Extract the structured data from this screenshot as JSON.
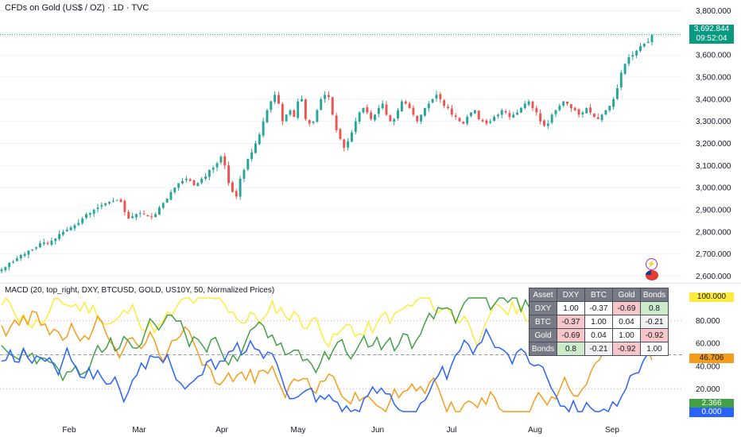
{
  "header": {
    "symbol_title": "CFDs on Gold (US$ / OZ) · 1D · TVC"
  },
  "price_axis": {
    "labels": [
      "3,800.000",
      "3,700.000",
      "3,600.000",
      "3,500.000",
      "3,400.000",
      "3,300.000",
      "3,200.000",
      "3,100.000",
      "3,000.000",
      "2,900.000",
      "2,800.000",
      "2,700.000",
      "2,600.000"
    ],
    "last_price": "3,692.844",
    "countdown": "09:52:04"
  },
  "indicator": {
    "title": "MACD (20, top_right, DXY, BTCUSD, GOLD, US10Y, 50, Normalized Prices)",
    "axis_labels": [
      "100.000",
      "80.000",
      "60.000",
      "40.000",
      "20.000"
    ],
    "badges": {
      "top": "100.000",
      "gold": "46.706",
      "green": "2.366",
      "blue": "0.000"
    }
  },
  "correlation_table": {
    "headers": [
      "Asset",
      "DXY",
      "BTC",
      "Gold",
      "Bonds"
    ],
    "rows": [
      [
        "DXY",
        "1.00",
        "-0.37",
        "-0.69",
        "0.8"
      ],
      [
        "BTC",
        "-0.37",
        "1.00",
        "0.04",
        "-0.21"
      ],
      [
        "Gold",
        "-0.69",
        "0.04",
        "1.00",
        "-0.92"
      ],
      [
        "Bonds",
        "0.8",
        "-0.21",
        "-0.92",
        "1.00"
      ]
    ]
  },
  "time_axis": [
    "Feb",
    "Mar",
    "Apr",
    "May",
    "Jun",
    "Jul",
    "Aug",
    "Sep"
  ],
  "colors": {
    "up": "#26a69a",
    "down": "#ef5350",
    "accent": "#089981",
    "line_yellow": "#ffeb3b",
    "line_orange": "#f59c1a",
    "line_green": "#43a047",
    "line_blue": "#2962ff"
  },
  "chart_data": {
    "type": "candlestick",
    "ylim": [
      2580,
      3820
    ],
    "close_series": [
      2630,
      2640,
      2660,
      2665,
      2680,
      2695,
      2700,
      2715,
      2720,
      2730,
      2748,
      2752,
      2745,
      2760,
      2770,
      2790,
      2800,
      2810,
      2820,
      2830,
      2840,
      2860,
      2880,
      2885,
      2900,
      2910,
      2920,
      2930,
      2935,
      2940,
      2945,
      2935,
      2890,
      2860,
      2870,
      2880,
      2885,
      2880,
      2870,
      2870,
      2880,
      2910,
      2930,
      2950,
      2980,
      3000,
      3020,
      3030,
      3040,
      3030,
      3010,
      3020,
      3040,
      3050,
      3080,
      3090,
      3110,
      3140,
      3100,
      3020,
      2980,
      2960,
      3040,
      3080,
      3130,
      3160,
      3200,
      3240,
      3300,
      3350,
      3390,
      3420,
      3380,
      3300,
      3330,
      3350,
      3320,
      3390,
      3400,
      3310,
      3290,
      3300,
      3350,
      3400,
      3420,
      3410,
      3330,
      3260,
      3220,
      3180,
      3210,
      3250,
      3300,
      3340,
      3360,
      3340,
      3310,
      3330,
      3360,
      3380,
      3330,
      3300,
      3310,
      3350,
      3390,
      3380,
      3360,
      3330,
      3300,
      3330,
      3360,
      3380,
      3400,
      3420,
      3400,
      3370,
      3360,
      3330,
      3320,
      3300,
      3290,
      3320,
      3340,
      3350,
      3310,
      3300,
      3290,
      3300,
      3320,
      3330,
      3350,
      3340,
      3320,
      3330,
      3340,
      3360,
      3380,
      3390,
      3360,
      3340,
      3300,
      3280,
      3290,
      3330,
      3350,
      3370,
      3390,
      3380,
      3360,
      3350,
      3330,
      3340,
      3360,
      3340,
      3320,
      3310,
      3330,
      3350,
      3370,
      3400,
      3450,
      3520,
      3560,
      3590,
      3600,
      3620,
      3640,
      3650,
      3660,
      3690
    ],
    "normalized_series": [
      {
        "name": "DXY",
        "color": "#ffeb3b"
      },
      {
        "name": "BTC",
        "color": "#f59c1a"
      },
      {
        "name": "Gold",
        "color": "#43a047"
      },
      {
        "name": "Bonds",
        "color": "#2962ff"
      }
    ],
    "normalized_ylim": [
      0,
      100
    ]
  }
}
